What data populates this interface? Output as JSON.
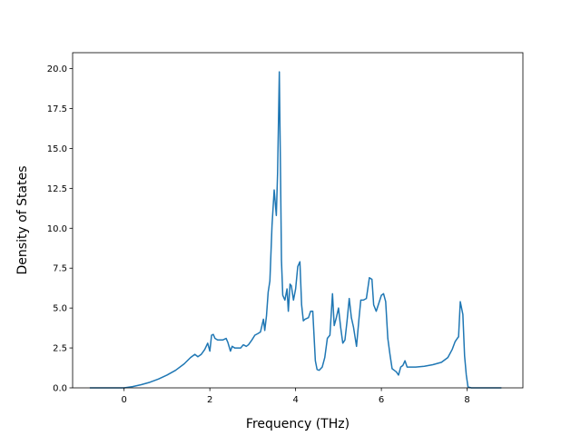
{
  "chart_data": {
    "type": "line",
    "title": "",
    "xlabel": "Frequency (THz)",
    "ylabel": "Density of States",
    "xlim": [
      -1.2,
      9.3
    ],
    "ylim": [
      0,
      21.0
    ],
    "xticks": [
      0,
      2,
      4,
      6,
      8
    ],
    "yticks": [
      0.0,
      2.5,
      5.0,
      7.5,
      10.0,
      12.5,
      15.0,
      17.5,
      20.0
    ],
    "xtick_labels": [
      "0",
      "2",
      "4",
      "6",
      "8"
    ],
    "ytick_labels": [
      "0.0",
      "2.5",
      "5.0",
      "7.5",
      "10.0",
      "12.5",
      "15.0",
      "17.5",
      "20.0"
    ],
    "grid": false,
    "legend": "none",
    "series": [
      {
        "color": "#1f77b4",
        "x": [
          -0.8,
          0.0,
          0.2,
          0.4,
          0.6,
          0.8,
          1.0,
          1.2,
          1.4,
          1.55,
          1.65,
          1.72,
          1.8,
          1.88,
          1.95,
          2.0,
          2.04,
          2.08,
          2.12,
          2.18,
          2.3,
          2.38,
          2.42,
          2.48,
          2.52,
          2.58,
          2.65,
          2.72,
          2.78,
          2.85,
          2.9,
          2.98,
          3.05,
          3.12,
          3.18,
          3.25,
          3.28,
          3.32,
          3.36,
          3.4,
          3.45,
          3.5,
          3.55,
          3.58,
          3.62,
          3.65,
          3.67,
          3.7,
          3.75,
          3.8,
          3.83,
          3.87,
          3.9,
          3.95,
          4.0,
          4.05,
          4.1,
          4.14,
          4.18,
          4.22,
          4.3,
          4.35,
          4.4,
          4.46,
          4.5,
          4.55,
          4.62,
          4.68,
          4.74,
          4.8,
          4.86,
          4.9,
          4.95,
          5.0,
          5.05,
          5.1,
          5.15,
          5.2,
          5.25,
          5.3,
          5.35,
          5.42,
          5.48,
          5.52,
          5.58,
          5.65,
          5.72,
          5.78,
          5.82,
          5.88,
          5.94,
          6.0,
          6.05,
          6.1,
          6.15,
          6.2,
          6.25,
          6.3,
          6.35,
          6.4,
          6.45,
          6.5,
          6.55,
          6.6,
          6.8,
          7.0,
          7.2,
          7.4,
          7.55,
          7.65,
          7.72,
          7.77,
          7.8,
          7.84,
          7.87,
          7.9,
          7.94,
          7.98,
          8.02,
          8.1,
          8.8
        ],
        "y": [
          0.0,
          0.0,
          0.08,
          0.2,
          0.35,
          0.55,
          0.8,
          1.1,
          1.5,
          1.9,
          2.1,
          1.95,
          2.1,
          2.4,
          2.8,
          2.3,
          3.3,
          3.35,
          3.1,
          3.0,
          3.0,
          3.1,
          2.85,
          2.3,
          2.6,
          2.5,
          2.5,
          2.5,
          2.7,
          2.6,
          2.7,
          3.0,
          3.3,
          3.4,
          3.5,
          4.3,
          3.6,
          4.5,
          6.0,
          6.7,
          10.2,
          12.4,
          10.8,
          13.5,
          19.8,
          13.0,
          8.0,
          5.8,
          5.5,
          6.2,
          4.8,
          6.5,
          6.4,
          5.5,
          6.2,
          7.6,
          7.9,
          5.2,
          4.2,
          4.3,
          4.4,
          4.8,
          4.8,
          1.7,
          1.15,
          1.1,
          1.3,
          1.9,
          3.1,
          3.3,
          5.9,
          3.9,
          4.4,
          5.0,
          3.8,
          2.8,
          3.0,
          4.2,
          5.6,
          4.4,
          3.8,
          2.6,
          4.4,
          5.5,
          5.5,
          5.6,
          6.9,
          6.8,
          5.2,
          4.8,
          5.3,
          5.8,
          5.9,
          5.4,
          3.1,
          2.1,
          1.2,
          1.1,
          1.0,
          0.8,
          1.3,
          1.4,
          1.7,
          1.3,
          1.3,
          1.35,
          1.45,
          1.6,
          1.9,
          2.4,
          2.9,
          3.1,
          3.2,
          5.4,
          5.0,
          4.6,
          2.0,
          0.8,
          0.05,
          0.0,
          0.0
        ]
      }
    ]
  }
}
